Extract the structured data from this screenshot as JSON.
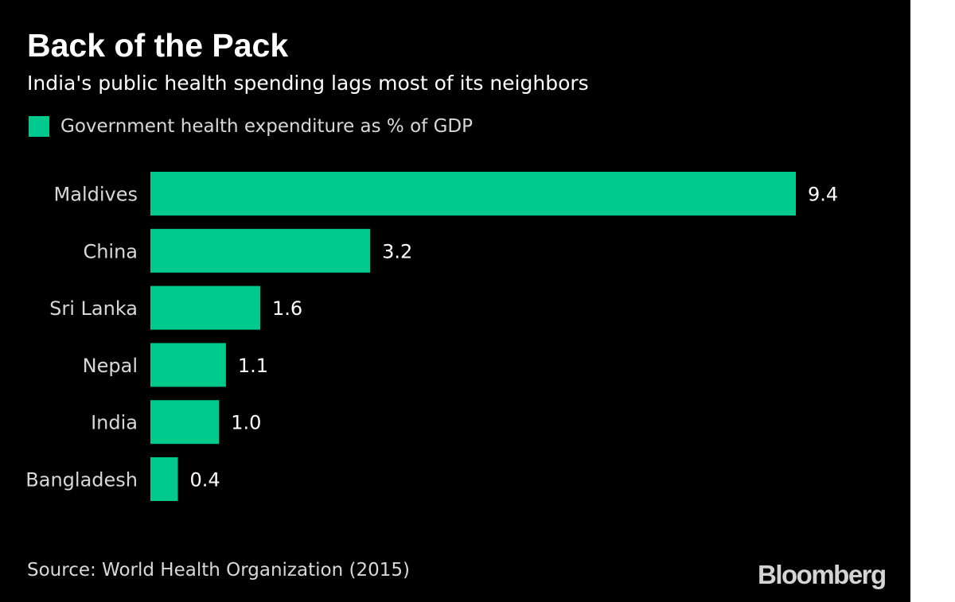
{
  "chart_data": {
    "type": "bar",
    "orientation": "horizontal",
    "title": "Back of the Pack",
    "subtitle": "India's public health spending lags most of its neighbors",
    "categories": [
      "Maldives",
      "China",
      "Sri Lanka",
      "Nepal",
      "India",
      "Bangladesh"
    ],
    "series": [
      {
        "name": "Government health expenditure as % of GDP",
        "values": [
          9.4,
          3.2,
          1.6,
          1.1,
          1.0,
          0.4
        ],
        "color": "#00c98d"
      }
    ],
    "value_labels": [
      "9.4",
      "3.2",
      "1.6",
      "1.1",
      "1.0",
      "0.4"
    ],
    "xlim": [
      0,
      9.4
    ],
    "grid": false,
    "legend_placement": "top-left",
    "source": "Source: World Health Organization (2015)",
    "brand": "Bloomberg"
  }
}
